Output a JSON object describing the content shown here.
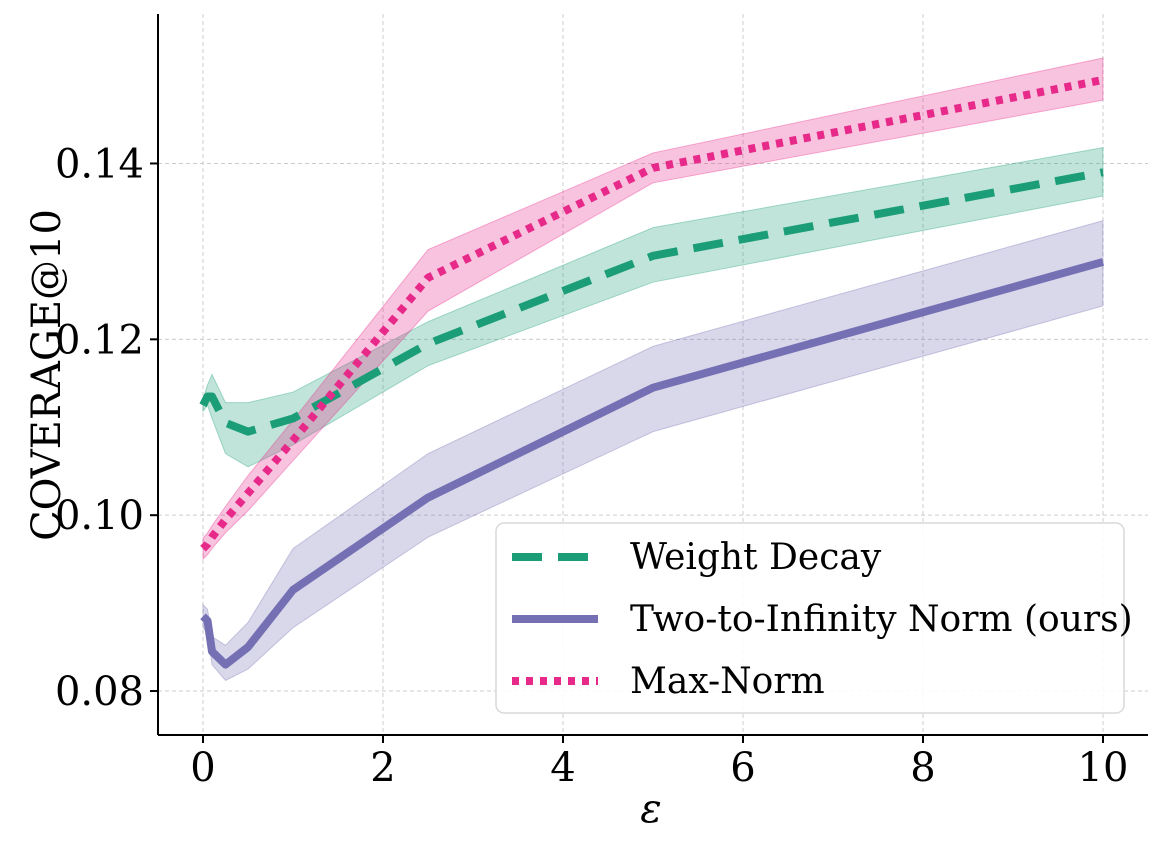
{
  "chart_data": {
    "type": "line",
    "title": "",
    "xlabel": "ε",
    "ylabel": "COVERAGE@10",
    "xlim": [
      -0.5,
      10.5
    ],
    "ylim": [
      0.075,
      0.157
    ],
    "xticks": [
      0,
      2,
      4,
      6,
      8,
      10
    ],
    "xtick_labels": [
      "0",
      "2",
      "4",
      "6",
      "8",
      "10"
    ],
    "yticks": [
      0.08,
      0.1,
      0.12,
      0.14
    ],
    "ytick_labels": [
      "0.08",
      "0.10",
      "0.12",
      "0.14"
    ],
    "grid": true,
    "legend_position": "bottom-right",
    "series": [
      {
        "name": "Weight Decay",
        "color": "#1b9e77",
        "style": "dashed",
        "x": [
          0,
          0.05,
          0.1,
          0.25,
          0.5,
          1,
          2.5,
          5,
          10
        ],
        "y": [
          0.1125,
          0.1135,
          0.1135,
          0.1105,
          0.1095,
          0.111,
          0.1195,
          0.1295,
          0.139
        ],
        "lower": [
          0.1118,
          0.1125,
          0.111,
          0.107,
          0.1055,
          0.108,
          0.117,
          0.1265,
          0.1363
        ],
        "upper": [
          0.1132,
          0.1148,
          0.116,
          0.1128,
          0.1128,
          0.114,
          0.122,
          0.1327,
          0.1418
        ]
      },
      {
        "name": "Two-to-Infinity Norm (ours)",
        "color": "#7570b3",
        "style": "solid",
        "x": [
          0,
          0.05,
          0.1,
          0.25,
          0.5,
          1,
          2.5,
          5,
          10
        ],
        "y": [
          0.0885,
          0.088,
          0.0845,
          0.083,
          0.085,
          0.0915,
          0.102,
          0.1145,
          0.1288
        ],
        "lower": [
          0.0872,
          0.0866,
          0.083,
          0.0812,
          0.0825,
          0.0872,
          0.0975,
          0.1095,
          0.1238
        ],
        "upper": [
          0.0898,
          0.0893,
          0.0862,
          0.0852,
          0.0878,
          0.0962,
          0.107,
          0.1192,
          0.1335
        ]
      },
      {
        "name": "Max-Norm",
        "color": "#e7298a",
        "style": "dotted",
        "x": [
          0,
          0.05,
          0.1,
          0.25,
          0.5,
          1,
          2.5,
          5,
          10
        ],
        "y": [
          0.0962,
          0.0967,
          0.0975,
          0.0995,
          0.1025,
          0.1085,
          0.127,
          0.1395,
          0.1495
        ],
        "lower": [
          0.095,
          0.0955,
          0.0962,
          0.098,
          0.1005,
          0.1062,
          0.1232,
          0.1378,
          0.1472
        ],
        "upper": [
          0.0974,
          0.098,
          0.0988,
          0.101,
          0.1045,
          0.1108,
          0.1302,
          0.1412,
          0.152
        ]
      }
    ]
  }
}
